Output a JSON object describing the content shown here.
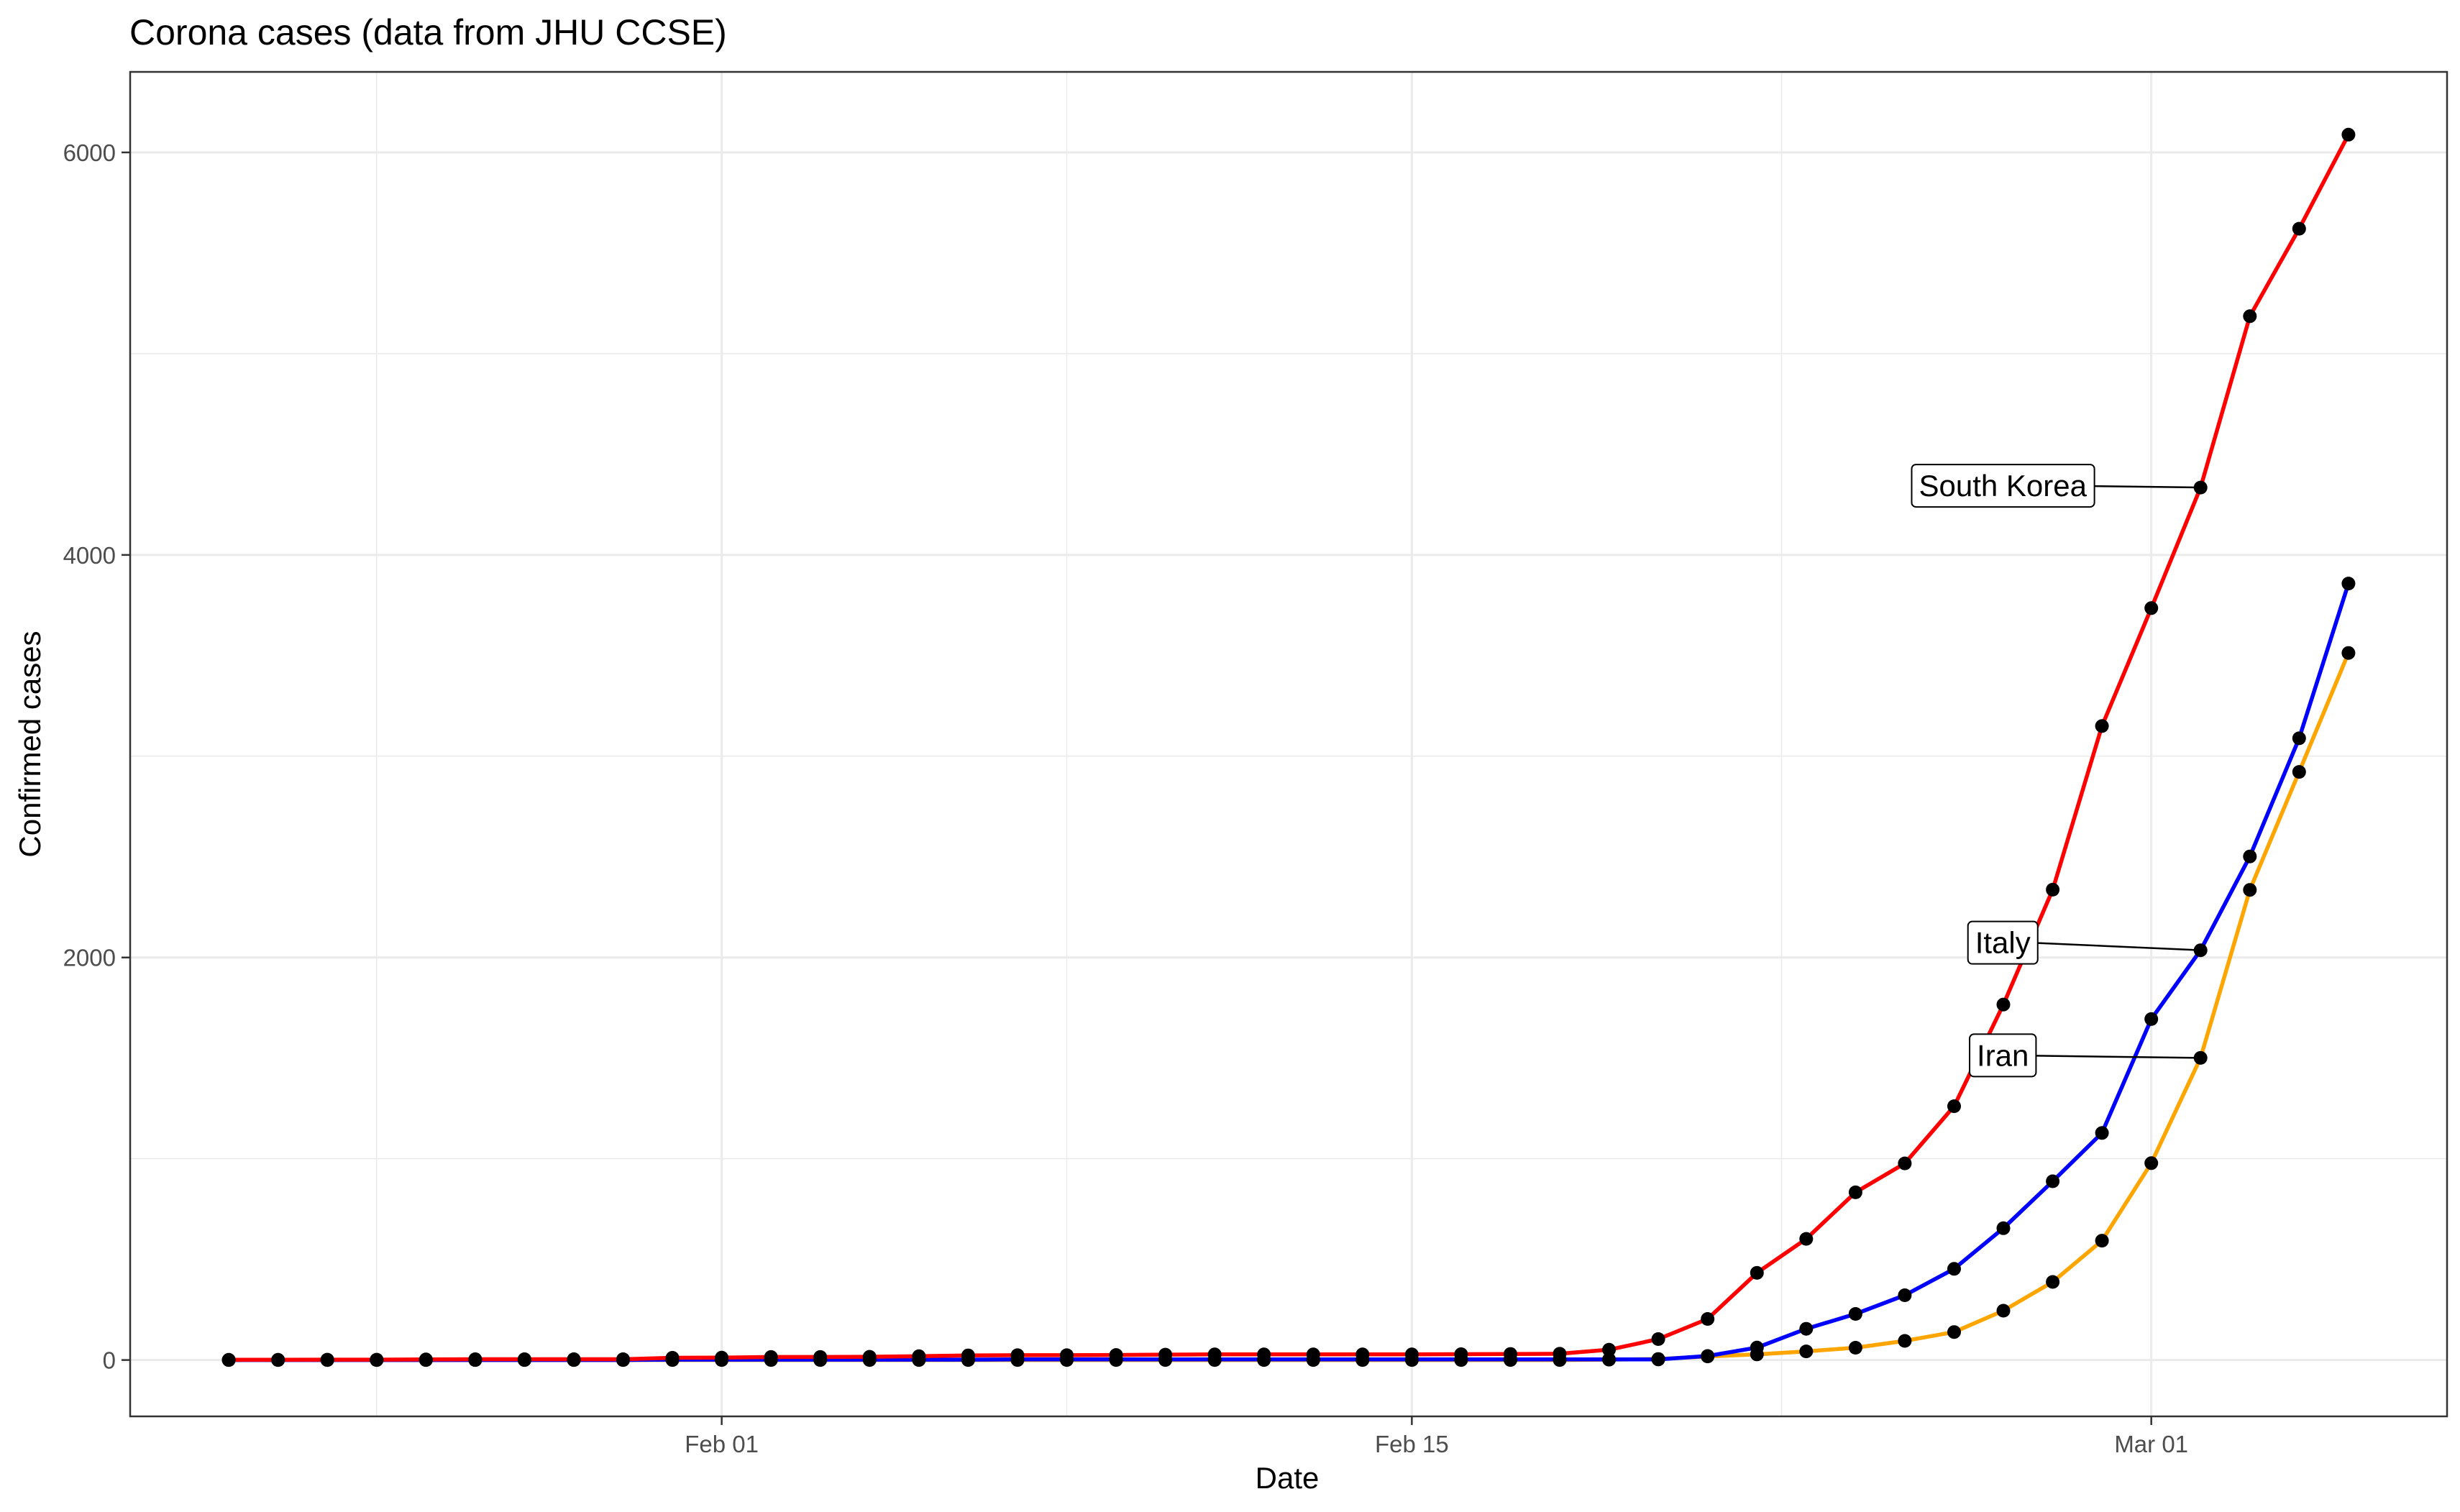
{
  "chart_data": {
    "type": "line",
    "title": "Corona cases (data from JHU CCSE)",
    "xlabel": "Date",
    "ylabel": "Confirmed cases",
    "x_tick_labels": [
      "Feb 01",
      "Feb 15",
      "Mar 01"
    ],
    "y_tick_labels": [
      "0",
      "2000",
      "4000",
      "6000"
    ],
    "ylim": [
      -280,
      6400
    ],
    "xlim": [
      "2020-01-20",
      "2020-03-07"
    ],
    "grid": true,
    "legend": "none",
    "x": [
      "2020-01-22",
      "2020-01-23",
      "2020-01-24",
      "2020-01-25",
      "2020-01-26",
      "2020-01-27",
      "2020-01-28",
      "2020-01-29",
      "2020-01-30",
      "2020-01-31",
      "2020-02-01",
      "2020-02-02",
      "2020-02-03",
      "2020-02-04",
      "2020-02-05",
      "2020-02-06",
      "2020-02-07",
      "2020-02-08",
      "2020-02-09",
      "2020-02-10",
      "2020-02-11",
      "2020-02-12",
      "2020-02-13",
      "2020-02-14",
      "2020-02-15",
      "2020-02-16",
      "2020-02-17",
      "2020-02-18",
      "2020-02-19",
      "2020-02-20",
      "2020-02-21",
      "2020-02-22",
      "2020-02-23",
      "2020-02-24",
      "2020-02-25",
      "2020-02-26",
      "2020-02-27",
      "2020-02-28",
      "2020-02-29",
      "2020-03-01",
      "2020-03-02",
      "2020-03-03",
      "2020-03-04",
      "2020-03-05"
    ],
    "series": [
      {
        "name": "South Korea",
        "color": "#ff0000",
        "values": [
          1,
          1,
          2,
          2,
          3,
          4,
          4,
          4,
          4,
          11,
          12,
          15,
          15,
          16,
          19,
          23,
          24,
          24,
          25,
          27,
          28,
          28,
          28,
          28,
          28,
          29,
          30,
          31,
          51,
          104,
          204,
          433,
          602,
          833,
          977,
          1261,
          1766,
          2337,
          3150,
          3736,
          4335,
          5186,
          5621,
          6088
        ]
      },
      {
        "name": "Italy",
        "color": "#0000ff",
        "values": [
          0,
          0,
          0,
          0,
          0,
          0,
          0,
          0,
          0,
          2,
          2,
          2,
          2,
          2,
          2,
          2,
          3,
          3,
          3,
          3,
          3,
          3,
          3,
          3,
          3,
          3,
          3,
          3,
          3,
          3,
          20,
          62,
          155,
          229,
          322,
          453,
          655,
          888,
          1128,
          1694,
          2036,
          2502,
          3089,
          3858
        ]
      },
      {
        "name": "Iran",
        "color": "#ffa500",
        "values": [
          0,
          0,
          0,
          0,
          0,
          0,
          0,
          0,
          0,
          0,
          0,
          0,
          0,
          0,
          0,
          0,
          0,
          0,
          0,
          0,
          0,
          0,
          0,
          0,
          0,
          0,
          0,
          0,
          2,
          5,
          18,
          28,
          43,
          61,
          95,
          139,
          245,
          388,
          593,
          978,
          1501,
          2336,
          2922,
          3513
        ]
      }
    ],
    "labels": [
      {
        "text": "South Korea",
        "series": "South Korea",
        "date": "2020-03-02",
        "value": 4335
      },
      {
        "text": "Italy",
        "series": "Italy",
        "date": "2020-03-02",
        "value": 2036
      },
      {
        "text": "Iran",
        "series": "Iran",
        "date": "2020-03-02",
        "value": 1501
      }
    ]
  }
}
